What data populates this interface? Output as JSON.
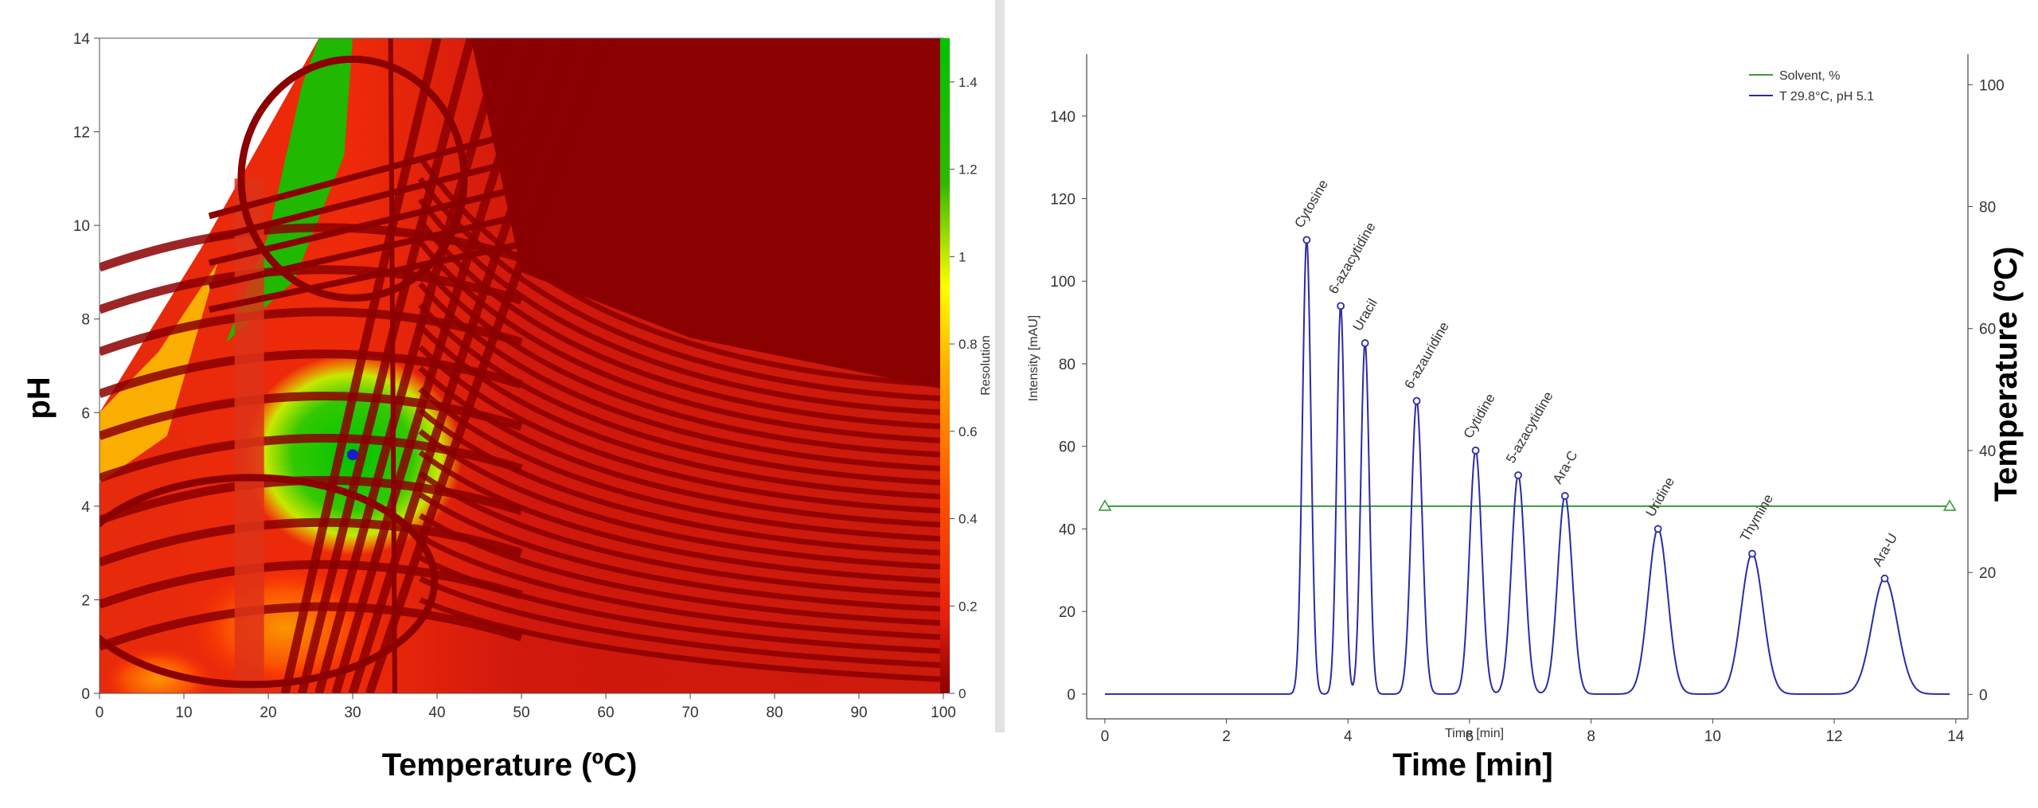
{
  "chart_data": [
    {
      "type": "heatmap",
      "xlabel": "Temperature (ºC)",
      "ylabel": "pH",
      "xlim": [
        0,
        100
      ],
      "ylim": [
        0,
        14
      ],
      "x_ticks": [
        "0",
        "10",
        "20",
        "30",
        "40",
        "50",
        "60",
        "70",
        "80",
        "90",
        "100"
      ],
      "y_ticks": [
        "0",
        "2",
        "4",
        "6",
        "8",
        "10",
        "12",
        "14"
      ],
      "colorbar": {
        "label": "Resolution",
        "range": [
          0,
          1.5
        ],
        "ticks": [
          "0",
          "0.2",
          "0.4",
          "0.6",
          "0.8",
          "1",
          "1.2",
          "1.4"
        ],
        "colors": [
          "#8b0000",
          "#e8200e",
          "#ff3b00",
          "#ff9c00",
          "#ffff00",
          "#2eb800",
          "#00c400"
        ]
      },
      "optimum_point": {
        "x": 30,
        "y": 5.1,
        "color": "#1c1ccc"
      }
    },
    {
      "type": "line",
      "xlabel": "Time [min]",
      "ylabel": "Intensity [mAU]",
      "y2label": "Temperature (ºC)",
      "xlim": [
        -0.3,
        14.2
      ],
      "ylim": [
        -6,
        155
      ],
      "y2lim": [
        -4,
        105
      ],
      "x_ticks": [
        "0",
        "2",
        "4",
        "6",
        "8",
        "10",
        "12",
        "14"
      ],
      "y_ticks": [
        "0",
        "20",
        "40",
        "60",
        "80",
        "100",
        "120",
        "140"
      ],
      "y2_ticks": [
        "0",
        "20",
        "40",
        "60",
        "80",
        "100"
      ],
      "legend_position": "top-right",
      "series": [
        {
          "name": "Solvent, %",
          "color": "#3a9a3a",
          "points": [
            [
              0,
              45.5
            ],
            [
              13.9,
              45.5
            ]
          ]
        },
        {
          "name": "T 29.8°C, pH 5.1",
          "color": "#2a2aaa",
          "baseline": 0,
          "peaks": [
            {
              "label": "Cytosine",
              "rt": 3.32,
              "height": 110,
              "width": 0.07
            },
            {
              "label": "6-azacytidine",
              "rt": 3.88,
              "height": 94,
              "width": 0.065
            },
            {
              "label": "Uracil",
              "rt": 4.28,
              "height": 85,
              "width": 0.07
            },
            {
              "label": "6-azauridine",
              "rt": 5.13,
              "height": 71,
              "width": 0.09
            },
            {
              "label": "Cytidine",
              "rt": 6.1,
              "height": 59,
              "width": 0.1
            },
            {
              "label": "5-azacytidine",
              "rt": 6.8,
              "height": 53,
              "width": 0.11
            },
            {
              "label": "Ara-C",
              "rt": 7.57,
              "height": 48,
              "width": 0.12
            },
            {
              "label": "Uridine",
              "rt": 9.1,
              "height": 40,
              "width": 0.16
            },
            {
              "label": "Thymine",
              "rt": 10.65,
              "height": 34,
              "width": 0.18
            },
            {
              "label": "Ara-U",
              "rt": 12.83,
              "height": 28,
              "width": 0.21
            }
          ]
        }
      ]
    }
  ]
}
